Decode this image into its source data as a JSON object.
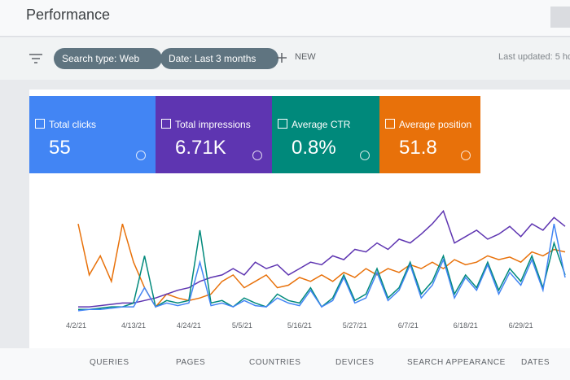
{
  "header": {
    "title": "Performance"
  },
  "filters": {
    "search_type": "Search type: Web",
    "date": "Date: Last 3 months",
    "new": "NEW",
    "last_updated": "Last updated: 5 ho"
  },
  "metrics": [
    {
      "label": "Total clicks",
      "value": "55",
      "color": "#4285f4"
    },
    {
      "label": "Total impressions",
      "value": "6.71K",
      "color": "#5e35b1"
    },
    {
      "label": "Average CTR",
      "value": "0.8%",
      "color": "#00897b"
    },
    {
      "label": "Average position",
      "value": "51.8",
      "color": "#e8710a"
    }
  ],
  "tabs": [
    "QUERIES",
    "PAGES",
    "COUNTRIES",
    "DEVICES",
    "SEARCH APPEARANCE",
    "DATES"
  ],
  "chart_data": {
    "type": "line",
    "categories": [
      "4/2/21",
      null,
      null,
      null,
      null,
      "4/13/21",
      null,
      null,
      null,
      null,
      "4/24/21",
      null,
      null,
      null,
      null,
      "5/5/21",
      null,
      null,
      null,
      null,
      "5/16/21",
      null,
      null,
      null,
      null,
      "5/27/21",
      null,
      null,
      null,
      null,
      "6/7/21",
      null,
      null,
      null,
      null,
      "6/18/21",
      null,
      null,
      null,
      null,
      "6/29/21",
      null,
      null,
      null,
      null
    ],
    "ylim": [
      0,
      100
    ],
    "series": [
      {
        "color": "#e8710a",
        "values": [
          70,
          30,
          45,
          25,
          70,
          40,
          20,
          5,
          15,
          12,
          10,
          12,
          15,
          25,
          30,
          20,
          25,
          30,
          20,
          22,
          28,
          25,
          30,
          25,
          32,
          28,
          35,
          30,
          35,
          32,
          38,
          35,
          40,
          35,
          42,
          38,
          40,
          45,
          42,
          44,
          40,
          48,
          45,
          50,
          48
        ]
      },
      {
        "color": "#5e35b1",
        "values": [
          5,
          5,
          6,
          7,
          8,
          8,
          10,
          12,
          15,
          18,
          20,
          25,
          28,
          30,
          35,
          30,
          40,
          35,
          38,
          30,
          35,
          40,
          38,
          45,
          42,
          50,
          48,
          55,
          50,
          58,
          55,
          62,
          70,
          80,
          55,
          60,
          65,
          58,
          62,
          68,
          60,
          70,
          65,
          75,
          68
        ]
      },
      {
        "color": "#00897b",
        "values": [
          3,
          3,
          4,
          5,
          5,
          8,
          45,
          5,
          10,
          8,
          10,
          65,
          8,
          10,
          5,
          12,
          8,
          5,
          15,
          10,
          8,
          20,
          5,
          12,
          30,
          10,
          15,
          35,
          12,
          20,
          40,
          15,
          25,
          45,
          15,
          30,
          20,
          40,
          18,
          35,
          25,
          45,
          20,
          55,
          30
        ]
      },
      {
        "color": "#4285f4",
        "values": [
          2,
          3,
          3,
          4,
          5,
          5,
          20,
          5,
          8,
          6,
          8,
          40,
          6,
          8,
          5,
          10,
          6,
          5,
          12,
          8,
          6,
          18,
          5,
          10,
          28,
          8,
          12,
          32,
          10,
          18,
          38,
          12,
          22,
          42,
          12,
          28,
          18,
          38,
          15,
          32,
          22,
          42,
          18,
          70,
          28
        ]
      }
    ]
  }
}
